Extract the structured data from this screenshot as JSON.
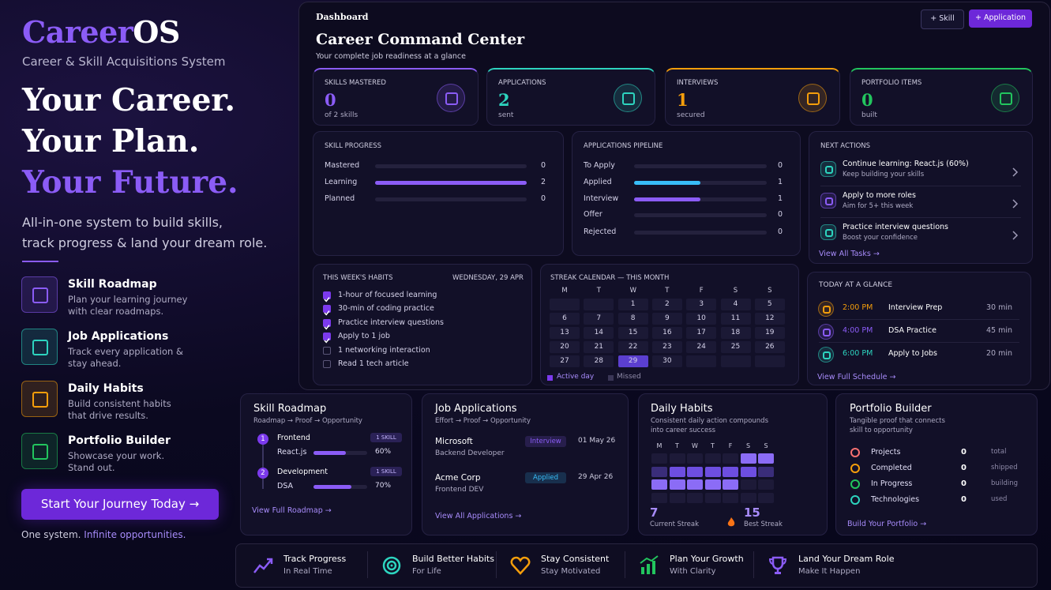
{
  "brand": {
    "name_part1": "Career",
    "name_part2": "OS",
    "tagline": "Career & Skill Acquisitions System"
  },
  "hero": {
    "lines": [
      "Your Career.",
      "Your Plan.",
      "Your Future."
    ],
    "description": [
      "All-in-one system to build skills,",
      "track progress & land your dream role."
    ]
  },
  "features": [
    {
      "title": "Skill Roadmap",
      "text": [
        "Plan your learning journey",
        "with clear roadmaps."
      ],
      "color": "#8b5cf6"
    },
    {
      "title": "Job Applications",
      "text": [
        "Track every application &",
        "stay ahead."
      ],
      "color": "#2dd4bf"
    },
    {
      "title": "Daily Habits",
      "text": [
        "Build consistent habits",
        "that drive results."
      ],
      "color": "#f59e0b"
    },
    {
      "title": "Portfolio Builder",
      "text": [
        "Showcase your work.",
        "Stand out."
      ],
      "color": "#22c55e"
    }
  ],
  "cta": "Start Your Journey Today →",
  "footer_note": {
    "text": "One system.",
    "highlight": "Infinite opportunities."
  },
  "dashboard": {
    "breadcrumb": "Dashboard",
    "title": "Career Command Center",
    "subtitle": "Your complete job readiness at a glance",
    "buttons": [
      "+ Skill",
      "+ Application"
    ],
    "stats": [
      {
        "label": "SKILLS MASTERED",
        "value": 0,
        "note": "of 2 skills",
        "color": "#8b5cf6"
      },
      {
        "label": "APPLICATIONS",
        "value": 2,
        "note": "sent",
        "color": "#2dd4bf"
      },
      {
        "label": "INTERVIEWS",
        "value": 1,
        "note": "secured",
        "color": "#f59e0b"
      },
      {
        "label": "PORTFOLIO ITEMS",
        "value": 0,
        "note": "built",
        "color": "#22c55e"
      }
    ],
    "skill_progress": {
      "title": "SKILL PROGRESS",
      "rows": [
        {
          "label": "Mastered",
          "value": 0,
          "color": "#8b5cf6"
        },
        {
          "label": "Learning",
          "value": 2,
          "color": "#8b5cf6"
        },
        {
          "label": "Planned",
          "value": 0,
          "color": "#8b5cf6"
        }
      ]
    },
    "pipeline": {
      "title": "APPLICATIONS PIPELINE",
      "rows": [
        {
          "label": "To Apply",
          "value": 0,
          "color": "#38bdf8"
        },
        {
          "label": "Applied",
          "value": 1,
          "color": "#38bdf8"
        },
        {
          "label": "Interview",
          "value": 1,
          "color": "#8b5cf6"
        },
        {
          "label": "Offer",
          "value": 0,
          "color": "#22c55e"
        },
        {
          "label": "Rejected",
          "value": 0,
          "color": "#ef4444"
        }
      ]
    },
    "next_actions": {
      "title": "NEXT ACTIONS",
      "items": [
        {
          "title": "Continue learning: React.js (60%)",
          "sub": "Keep building your skills",
          "color": "#2dd4bf"
        },
        {
          "title": "Apply to more roles",
          "sub": "Aim for 5+ this week",
          "color": "#8b5cf6"
        },
        {
          "title": "Practice interview questions",
          "sub": "Boost your confidence",
          "color": "#2dd4bf"
        }
      ],
      "link": "View All Tasks →"
    },
    "habits": {
      "title": "THIS WEEK'S HABITS",
      "date": "WEDNESDAY, 29 APR",
      "items": [
        {
          "text": "1-hour of focused learning",
          "done": true
        },
        {
          "text": "30-min of coding practice",
          "done": true
        },
        {
          "text": "Practice interview questions",
          "done": true
        },
        {
          "text": "Apply to 1 job",
          "done": true
        },
        {
          "text": "1 networking interaction",
          "done": false
        },
        {
          "text": "Read 1 tech article",
          "done": false
        }
      ]
    },
    "calendar": {
      "title": "STREAK CALENDAR — THIS MONTH",
      "weekdays": [
        "M",
        "T",
        "W",
        "T",
        "F",
        "S",
        "S"
      ],
      "weeks": [
        [
          null,
          null,
          1,
          2,
          3,
          4,
          5
        ],
        [
          6,
          7,
          8,
          9,
          10,
          11,
          12
        ],
        [
          13,
          14,
          15,
          16,
          17,
          18,
          19
        ],
        [
          20,
          21,
          22,
          23,
          24,
          25,
          26
        ],
        [
          27,
          28,
          29,
          30,
          null,
          null,
          null
        ]
      ],
      "active_days": [
        29
      ],
      "legend": [
        "Active day",
        "Missed"
      ]
    },
    "today": {
      "title": "TODAY AT A GLANCE",
      "items": [
        {
          "time": "2:00 PM",
          "task": "Interview Prep",
          "duration": "30 min",
          "color": "#f59e0b"
        },
        {
          "time": "4:00 PM",
          "task": "DSA Practice",
          "duration": "45 min",
          "color": "#8b5cf6"
        },
        {
          "time": "6:00 PM",
          "task": "Apply to Jobs",
          "duration": "20 min",
          "color": "#2dd4bf"
        }
      ],
      "link": "View Full Schedule →"
    }
  },
  "cards": {
    "roadmap": {
      "title": "Skill Roadmap",
      "subtitle": "Roadmap → Proof → Opportunity",
      "steps": [
        {
          "number": 1,
          "name": "Frontend",
          "badge": "1 SKILL",
          "skill": "React.js",
          "progress": 60,
          "progress_label": "60%"
        },
        {
          "number": 2,
          "name": "Development",
          "badge": "1 SKILL",
          "skill": "DSA",
          "progress": 70,
          "progress_label": "70%"
        }
      ],
      "link": "View Full Roadmap →"
    },
    "job_applications": {
      "title": "Job Applications",
      "subtitle": "Effort → Proof → Opportunity",
      "items": [
        {
          "company": "Microsoft",
          "role": "Backend Developer",
          "status": "Interview",
          "date": "01 May 26",
          "color": "#8b5cf6"
        },
        {
          "company": "Acme Corp",
          "role": "Frontend DEV",
          "status": "Applied",
          "date": "29 Apr 26",
          "color": "#38bdf8"
        }
      ],
      "link": "View All Applications →"
    },
    "daily_habits": {
      "title": "Daily Habits",
      "subtitle": [
        "Consistent daily action compounds",
        "into career success"
      ],
      "weekdays": [
        "M",
        "T",
        "W",
        "T",
        "F",
        "S",
        "S"
      ],
      "heatmap": [
        [
          0,
          0,
          0,
          0,
          0,
          3,
          3
        ],
        [
          1,
          2,
          2,
          2,
          2,
          2,
          1
        ],
        [
          3,
          3,
          3,
          3,
          3,
          0,
          0
        ],
        [
          0,
          0,
          0,
          0,
          0,
          0,
          0
        ]
      ],
      "current_streak": 7,
      "current_label": "Current Streak",
      "best_streak": 15,
      "best_label": "Best Streak"
    },
    "portfolio": {
      "title": "Portfolio Builder",
      "subtitle": [
        "Tangible proof that connects",
        "skill to opportunity"
      ],
      "rows": [
        {
          "label": "Projects",
          "value": 0,
          "unit": "total",
          "color": "#f87171"
        },
        {
          "label": "Completed",
          "value": 0,
          "unit": "shipped",
          "color": "#f59e0b"
        },
        {
          "label": "In Progress",
          "value": 0,
          "unit": "building",
          "color": "#22c55e"
        },
        {
          "label": "Technologies",
          "value": 0,
          "unit": "used",
          "color": "#2dd4bf"
        }
      ],
      "link": "Build Your Portfolio →"
    }
  },
  "benefits": [
    {
      "title": "Track Progress",
      "sub": "In Real Time",
      "color": "#8b5cf6"
    },
    {
      "title": "Build Better Habits",
      "sub": "For Life",
      "color": "#2dd4bf"
    },
    {
      "title": "Stay Consistent",
      "sub": "Stay Motivated",
      "color": "#f59e0b"
    },
    {
      "title": "Plan Your Growth",
      "sub": "With Clarity",
      "color": "#22c55e"
    },
    {
      "title": "Land Your Dream Role",
      "sub": "Make It Happen",
      "color": "#8b5cf6"
    }
  ]
}
